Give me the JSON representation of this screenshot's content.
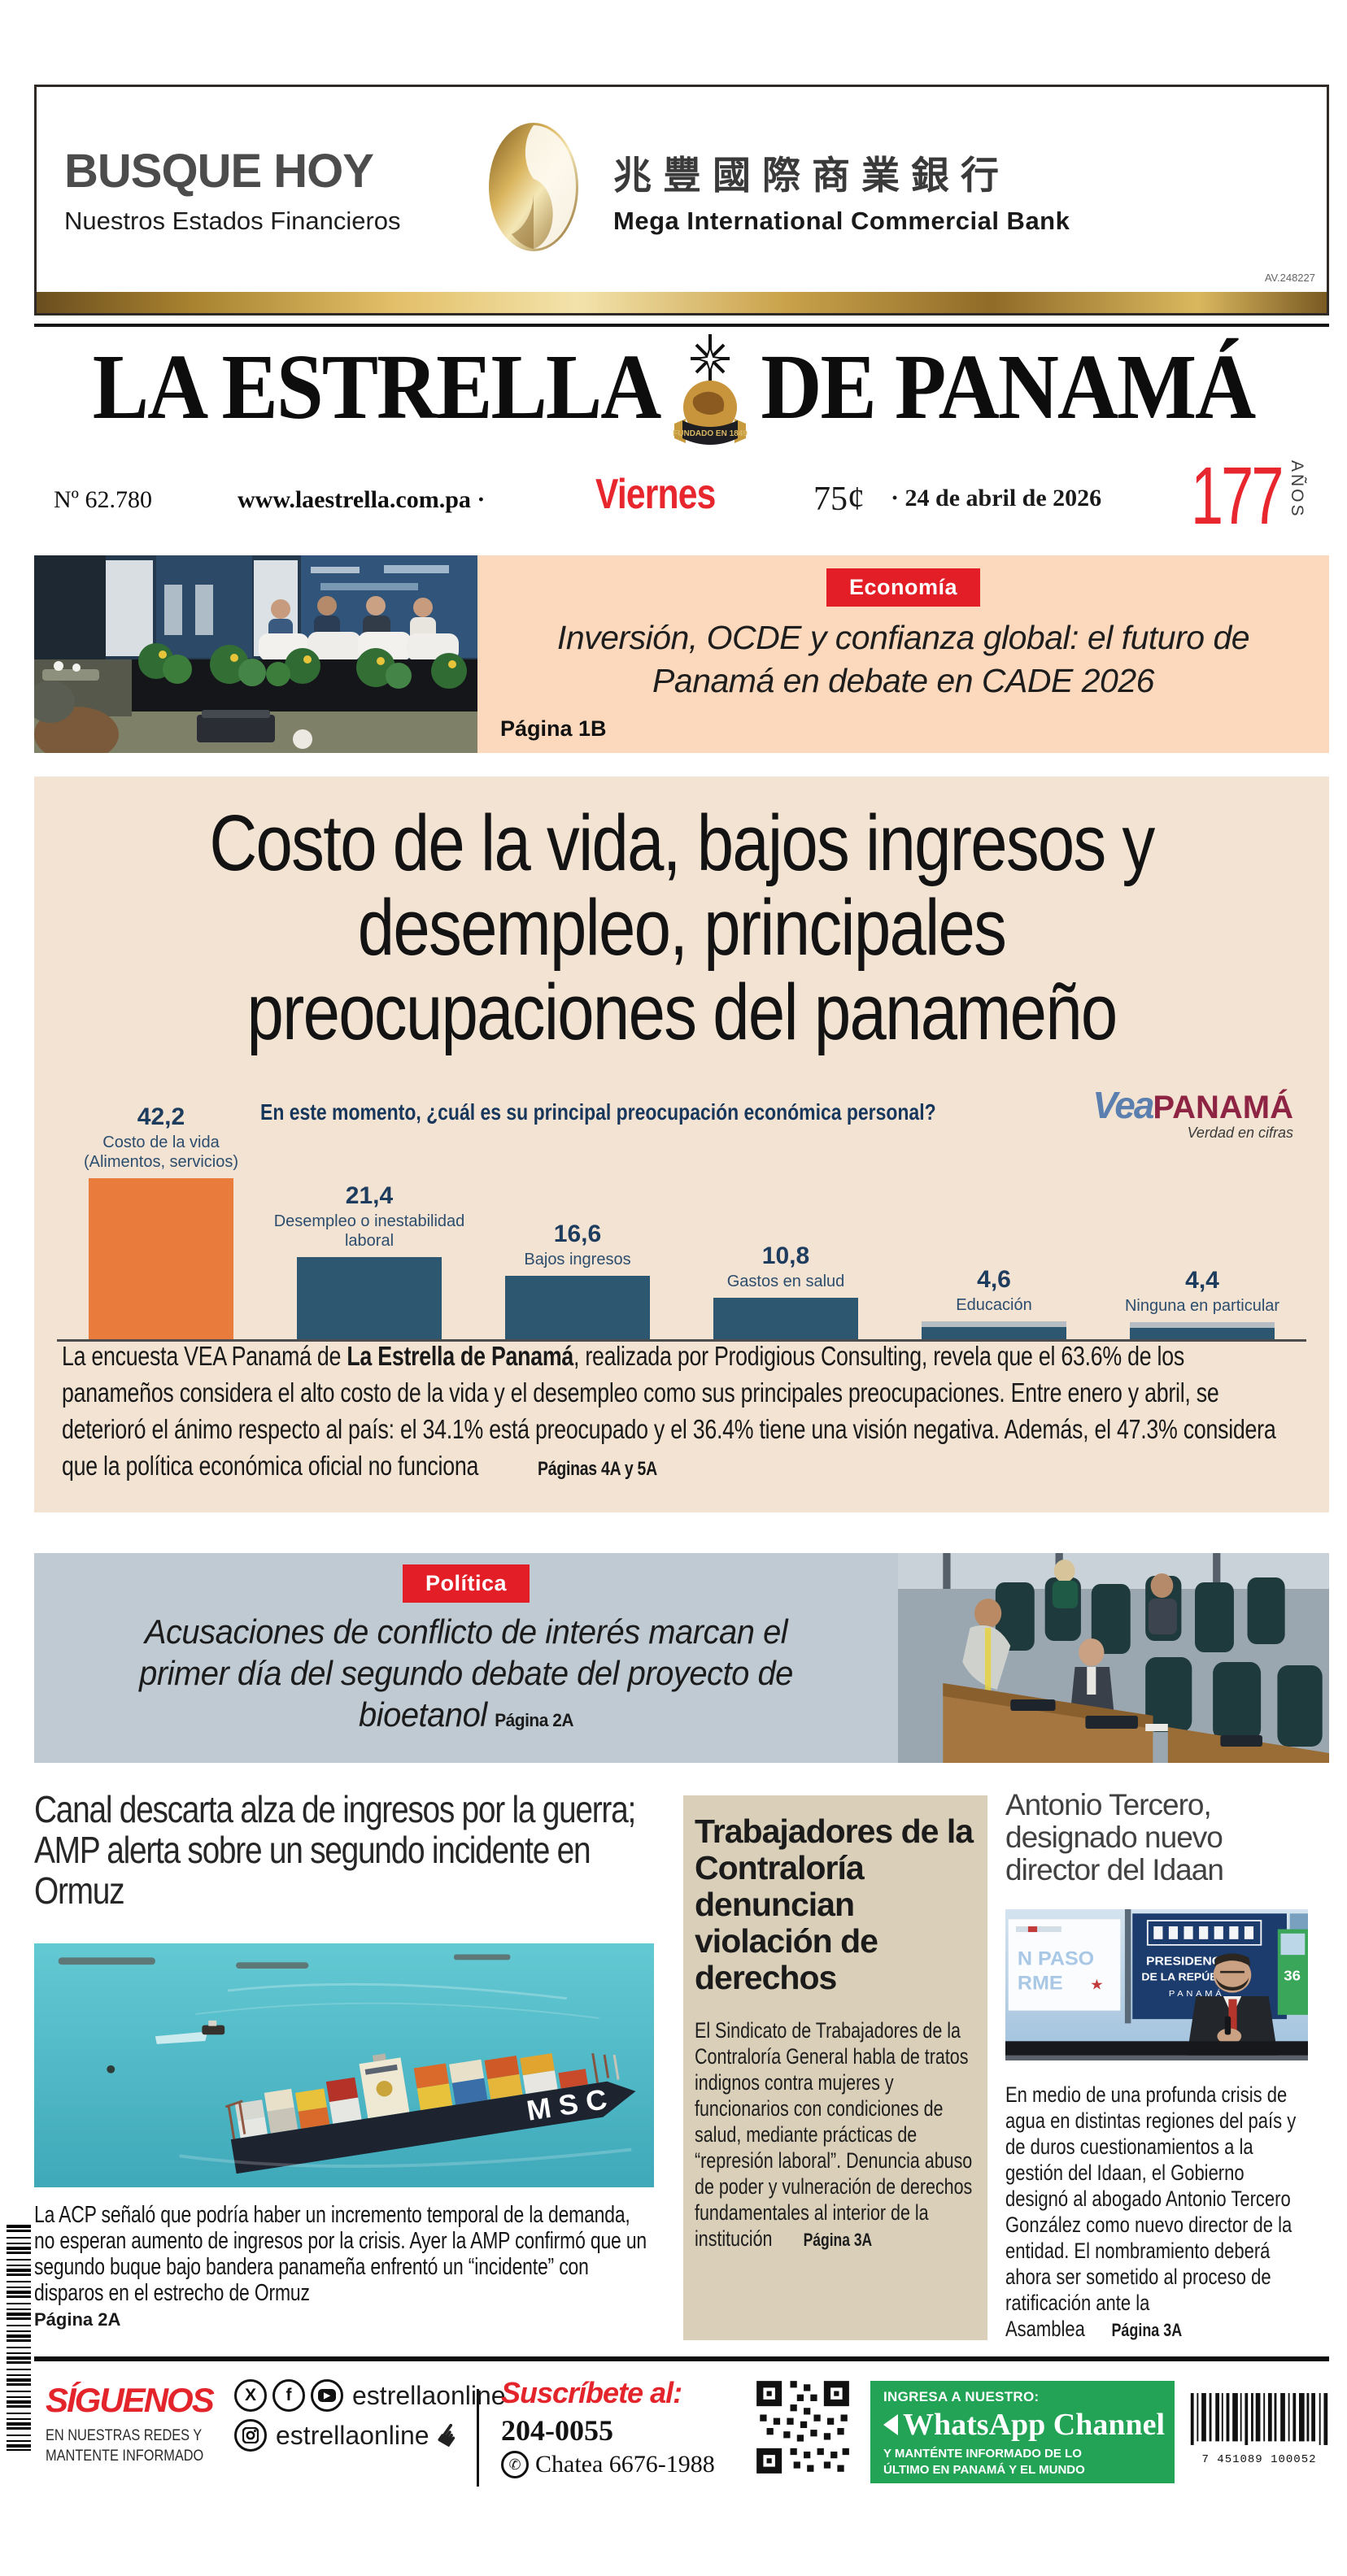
{
  "ad": {
    "headline": "BUSQUE HOY",
    "subline": "Nuestros Estados Financieros",
    "bank_cn": "兆豐國際商業銀行",
    "bank_en": "Mega International Commercial Bank",
    "code": "AV.248227"
  },
  "masthead": {
    "title_left": "LA ESTRELLA",
    "title_right": "DE PANAMÁ",
    "emblem_text": "FUNDADO EN 1849",
    "issue": "Nº  62.780",
    "website": "www.laestrella.com.pa ·",
    "day": "Viernes",
    "price": "75¢",
    "date": "· 24 de abril de 2026",
    "years_number": "177",
    "years_label": "AÑOS"
  },
  "teaser": {
    "tag": "Economía",
    "headline": "Inversión, OCDE y confianza global: el futuro de Panamá en debate en CADE 2026",
    "page": "Página 1B"
  },
  "main_story": {
    "headline_lines": [
      "Costo de la vida, bajos ingresos y",
      "desempleo, principales",
      "preocupaciones del panameño"
    ],
    "body_pre": "La encuesta VEA Panamá de ",
    "body_bold": "La Estrella de Panamá",
    "body_post": ", realizada por Prodigious Consulting, revela que el 63.6% de los panameños considera el alto costo de la vida y el desempleo como sus principales preocupaciones. Entre enero y abril, se deterioró el ánimo respecto al país: el 34.1% está preocupado y el 36.4% tiene una visión negativa. Además, el 47.3% considera que la política económica oficial no funciona",
    "pages": "Páginas 4A y 5A"
  },
  "chart_data": {
    "type": "bar",
    "title": "En este momento, ¿cuál es su principal preocupación económica personal?",
    "source_primary": "Vea",
    "source_secondary": "PANAMÁ",
    "source_tagline": "Verdad en cifras",
    "categories": [
      "Costo de la vida (Alimentos, servicios)",
      "Desempleo o inestabilidad laboral",
      "Bajos ingresos",
      "Gastos en salud",
      "Educación",
      "Ninguna en particular"
    ],
    "values": [
      42.2,
      21.4,
      16.6,
      10.8,
      4.6,
      4.4
    ],
    "value_labels": [
      "42,2",
      "21,4",
      "16,6",
      "10,8",
      "4,6",
      "4,4"
    ],
    "bar_colors": [
      "#e97b3d",
      "#2d5671",
      "#2d5671",
      "#2d5671",
      "#2d5671",
      "#2d5671"
    ],
    "ylim": [
      0,
      45
    ],
    "grid": false,
    "legend": "none"
  },
  "politics": {
    "tag": "Política",
    "headline_lines": [
      "Acusaciones de conflicto de interés marcan el",
      "primer día del segundo debate del proyecto de",
      "bioetanol"
    ],
    "page": "Página 2A"
  },
  "canal": {
    "headline": "Canal descarta alza de ingresos por la guerra; AMP alerta sobre un segundo incidente en Ormuz",
    "body": "La ACP señaló que podría haber un incremento temporal de la demanda, no esperan aumento de ingresos por la crisis. Ayer la AMP confirmó que un segundo buque bajo bandera panameña enfrentó un “incidente” con disparos en el estrecho de Ormuz",
    "page": "Página 2A",
    "photo_text": "MSC"
  },
  "contraloria": {
    "headline": "Trabajadores de la Contraloría denuncian violación de derechos",
    "body": "El Sindicato de Trabajadores de la Contraloría General habla de tratos indignos contra mujeres y funcionarios con condiciones de salud, mediante prácticas de “represión laboral”. Denuncia abuso de poder y vulneración de derechos fundamentales al interior de la institución",
    "page": "Página 3A"
  },
  "idaan": {
    "headline": "Antonio Tercero, designado nuevo director del Idaan",
    "body": "En medio de una profunda crisis de agua en distintas regiones del país y de duros cuestionamientos a la gestión del Idaan, el Gobierno designó al abogado Antonio Tercero González como nuevo director de la entidad. El nombramiento deberá ahora ser sometido al proceso de ratificación ante la Asamblea",
    "page": "Página 3A",
    "photo": {
      "sign_top": "N PASO",
      "sign_bottom": "RME",
      "backdrop_line1": "PRESIDENCIA",
      "backdrop_line2": "DE LA REPÚBLICA",
      "backdrop_line3": "PANAMÁ",
      "score": "36"
    }
  },
  "footer": {
    "siguenos": "SÍGUENOS",
    "siguenos_line1": "EN NUESTRAS REDES Y",
    "siguenos_line2": "MANTENTE INFORMADO",
    "handle1": "estrellaonline",
    "handle2": "estrellaonline",
    "suscribete": "Suscríbete al:",
    "phone": "204-0055",
    "chatea": "Chatea 6676-1988",
    "whatsapp": {
      "ingresa": "INGRESA A NUESTRO:",
      "channel": "WhatsApp Channel",
      "line1": "Y MANTÉNTE INFORMADO DE LO",
      "line2": "ÚLTIMO EN PANAMÁ Y EL MUNDO"
    },
    "barcode_digits": "7 451089 100052",
    "icons": {
      "x": "X",
      "facebook": "f",
      "youtube": "▶",
      "phone": "✆",
      "hand": "☛"
    }
  }
}
